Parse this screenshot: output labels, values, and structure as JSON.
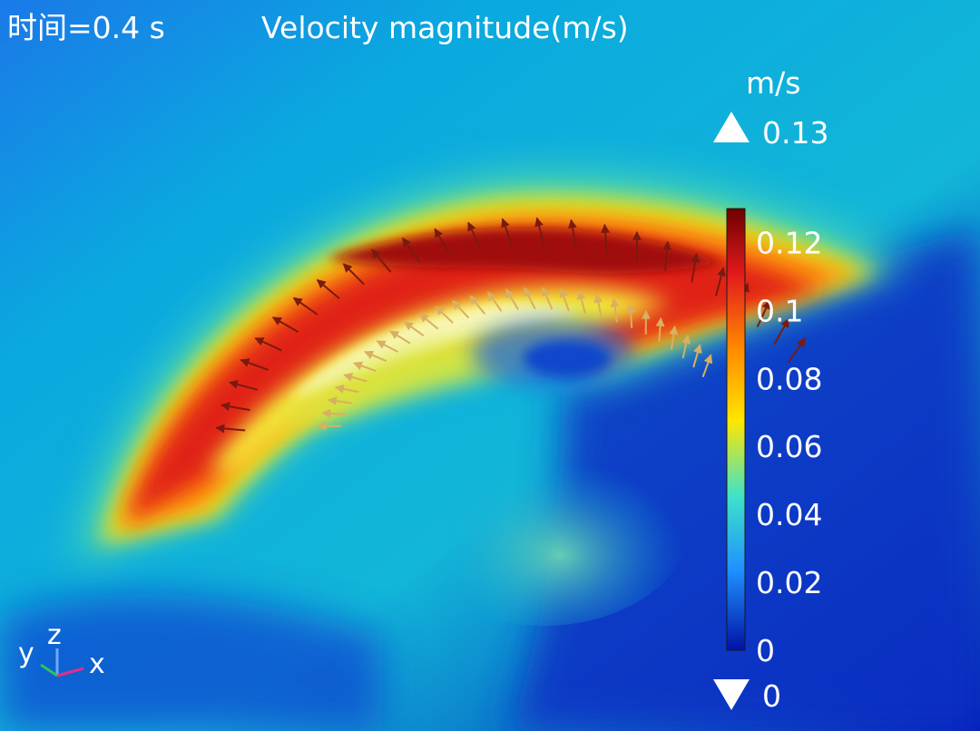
{
  "header": {
    "time_label": "时间=0.4 s",
    "plot_title": "Velocity magnitude(m/s)"
  },
  "colorbar": {
    "unit": "m/s",
    "max_marker": "0.13",
    "min_marker": "0",
    "tick_labels": [
      "0.12",
      "0.1",
      "0.08",
      "0.06",
      "0.04",
      "0.02",
      "0"
    ],
    "colors": [
      "#6e0000",
      "#e31a1c",
      "#ff8c00",
      "#ffe600",
      "#3fe3c8",
      "#1e90ff",
      "#0012a6"
    ]
  },
  "axes_triad": {
    "y_label": "y",
    "z_label": "z",
    "x_label": "x"
  },
  "chart_data": {
    "type": "heatmap",
    "title": "Velocity magnitude(m/s)",
    "variable": "Velocity magnitude",
    "unit": "m/s",
    "time_label": "时间=0.4 s",
    "colorbar_range": [
      0,
      0.13
    ],
    "colorbar_ticks": [
      0,
      0.02,
      0.04,
      0.06,
      0.08,
      0.1,
      0.12
    ],
    "max_value": 0.13,
    "min_value": 0,
    "vector_arrows": true
  }
}
